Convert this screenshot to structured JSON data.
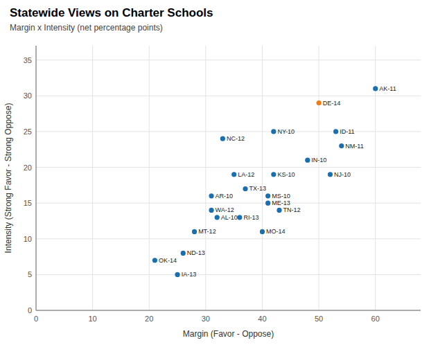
{
  "chart_data": {
    "type": "scatter",
    "title": "Statewide Views on Charter Schools",
    "subtitle": "Margin x Intensity (net percentage points)",
    "xlabel": "Margin (Favor - Oppose)",
    "ylabel": "Intensity (Strong Favor - Strong Oppose)",
    "labels": [
      "AK-11",
      "DE-14",
      "ID-11",
      "NY-10",
      "NM-11",
      "NC-12",
      "IN-10",
      "NJ-10",
      "KS-10",
      "LA-12",
      "TX-13",
      "MS-10",
      "AR-10",
      "ME-13",
      "WA-12",
      "TN-12",
      "AL-10",
      "RI-13",
      "MT-12",
      "MO-14",
      "ND-13",
      "OK-14",
      "IA-13"
    ],
    "x": [
      60,
      50,
      53,
      42,
      54,
      33,
      48,
      52,
      42,
      35,
      37,
      41,
      31,
      41,
      31,
      43,
      32,
      36,
      28,
      40,
      26,
      21,
      25
    ],
    "values": [
      31,
      29,
      25,
      25,
      23,
      24,
      21,
      19,
      19,
      19,
      17,
      16,
      16,
      15,
      14,
      14,
      13,
      13,
      11,
      11,
      8,
      7,
      5
    ],
    "colors": [
      "#1a6faf",
      "#f07c14",
      "#1a6faf",
      "#1a6faf",
      "#1a6faf",
      "#1a6faf",
      "#1a6faf",
      "#1a6faf",
      "#1a6faf",
      "#1a6faf",
      "#1a6faf",
      "#1a6faf",
      "#1a6faf",
      "#1a6faf",
      "#1a6faf",
      "#1a6faf",
      "#1a6faf",
      "#1a6faf",
      "#1a6faf",
      "#1a6faf",
      "#1a6faf",
      "#1a6faf",
      "#1a6faf"
    ],
    "xlim": [
      0,
      68
    ],
    "ylim": [
      0,
      37
    ],
    "xticks": [
      0,
      10,
      20,
      30,
      40,
      50,
      60
    ],
    "yticks": [
      0,
      5,
      10,
      15,
      20,
      25,
      30,
      35
    ],
    "grid": true
  }
}
